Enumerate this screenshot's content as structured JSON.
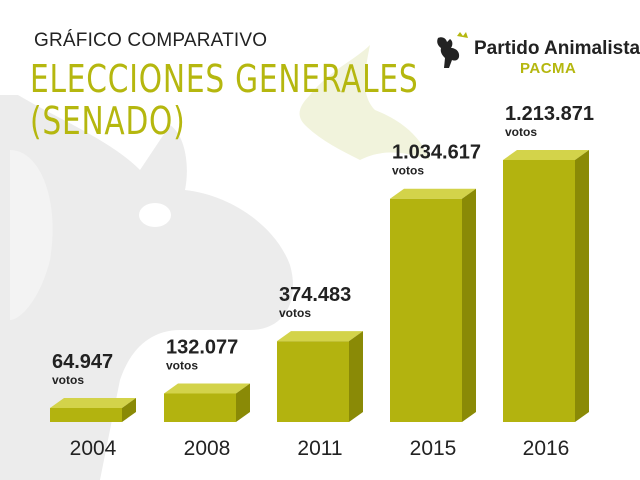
{
  "header": {
    "subtitle": "GRÁFICO COMPARATIVO",
    "title": "ELECCIONES GENERALES\n(SENADO)"
  },
  "logo": {
    "name": "Partido Animalista",
    "acronym": "PACMA",
    "icon": "dog-silhouette-icon"
  },
  "colors": {
    "bar_front": "#b3b30f",
    "bar_top": "#d3d34a",
    "bar_side": "#8a8a06",
    "title": "#b5b70f",
    "background_shape": "#ececec"
  },
  "chart_data": {
    "type": "bar",
    "title": "ELECCIONES GENERALES (SENADO)",
    "subtitle": "GRÁFICO COMPARATIVO",
    "categories": [
      "2004",
      "2008",
      "2011",
      "2015",
      "2016"
    ],
    "values": [
      64947,
      132077,
      374483,
      1034617,
      1213871
    ],
    "value_labels": [
      "64.947",
      "132.077",
      "374.483",
      "1.034.617",
      "1.213.871"
    ],
    "unit_label": "votos",
    "style": "3d"
  }
}
